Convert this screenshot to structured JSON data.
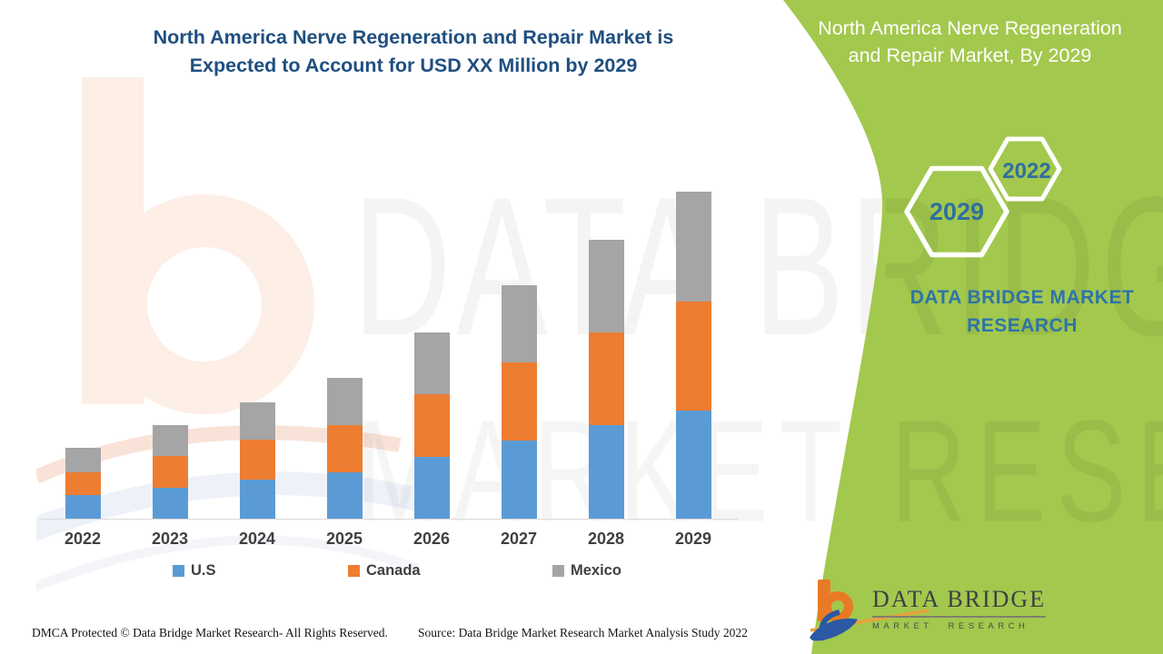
{
  "left_section": {
    "title_line1": "North America Nerve Regeneration and Repair Market is",
    "title_line2": "Expected to Account for USD XX Million by 2029",
    "title_color": "#1F4F80",
    "footer_dmca": "DMCA Protected © Data Bridge Market Research- All Rights Reserved.",
    "footer_source": "Source: Data Bridge Market Research Market Analysis Study 2022"
  },
  "chart_data": {
    "type": "bar",
    "stacked": true,
    "title": "North America Nerve Regeneration and Repair Market is Expected to Account for USD XX Million by 2029",
    "xlabel": "",
    "ylabel": "",
    "y_axis_visible": false,
    "gridlines": false,
    "legend_position": "bottom",
    "values_unit": "relative units (axis unlabeled, market shown as USD XX Million)",
    "values_estimated": true,
    "pixels_per_unit": 10,
    "categories": [
      "2022",
      "2023",
      "2024",
      "2025",
      "2026",
      "2027",
      "2028",
      "2029"
    ],
    "series": [
      {
        "name": "U.S",
        "color": "#5B9BD5",
        "values": [
          2.6,
          3.4,
          4.3,
          5.1,
          6.8,
          8.6,
          10.3,
          11.9
        ]
      },
      {
        "name": "Canada",
        "color": "#ED7D31",
        "values": [
          2.5,
          3.5,
          4.4,
          5.2,
          6.9,
          8.6,
          10.2,
          12.0
        ]
      },
      {
        "name": "Mexico",
        "color": "#A5A5A5",
        "values": [
          2.7,
          3.4,
          4.1,
          5.2,
          6.8,
          8.5,
          10.2,
          12.1
        ]
      }
    ],
    "totals": [
      7.8,
      10.3,
      12.8,
      15.5,
      20.5,
      25.7,
      30.7,
      36.0
    ]
  },
  "right_panel": {
    "panel_color": "#A3C84E",
    "title": "North America Nerve Regeneration and Repair Market, By 2029",
    "hexagon_large": "2029",
    "hexagon_small": "2022",
    "hexagon_text_color": "#2F6F9F",
    "brand": "DATA BRIDGE MARKET RESEARCH",
    "brand_color": "#2E74A8",
    "logo_name": "DATA BRIDGE",
    "logo_sub": "MARKET RESEARCH"
  },
  "watermark": {
    "line1": "DATA BRIDGE",
    "line2": "MARKET RESEARCH"
  }
}
